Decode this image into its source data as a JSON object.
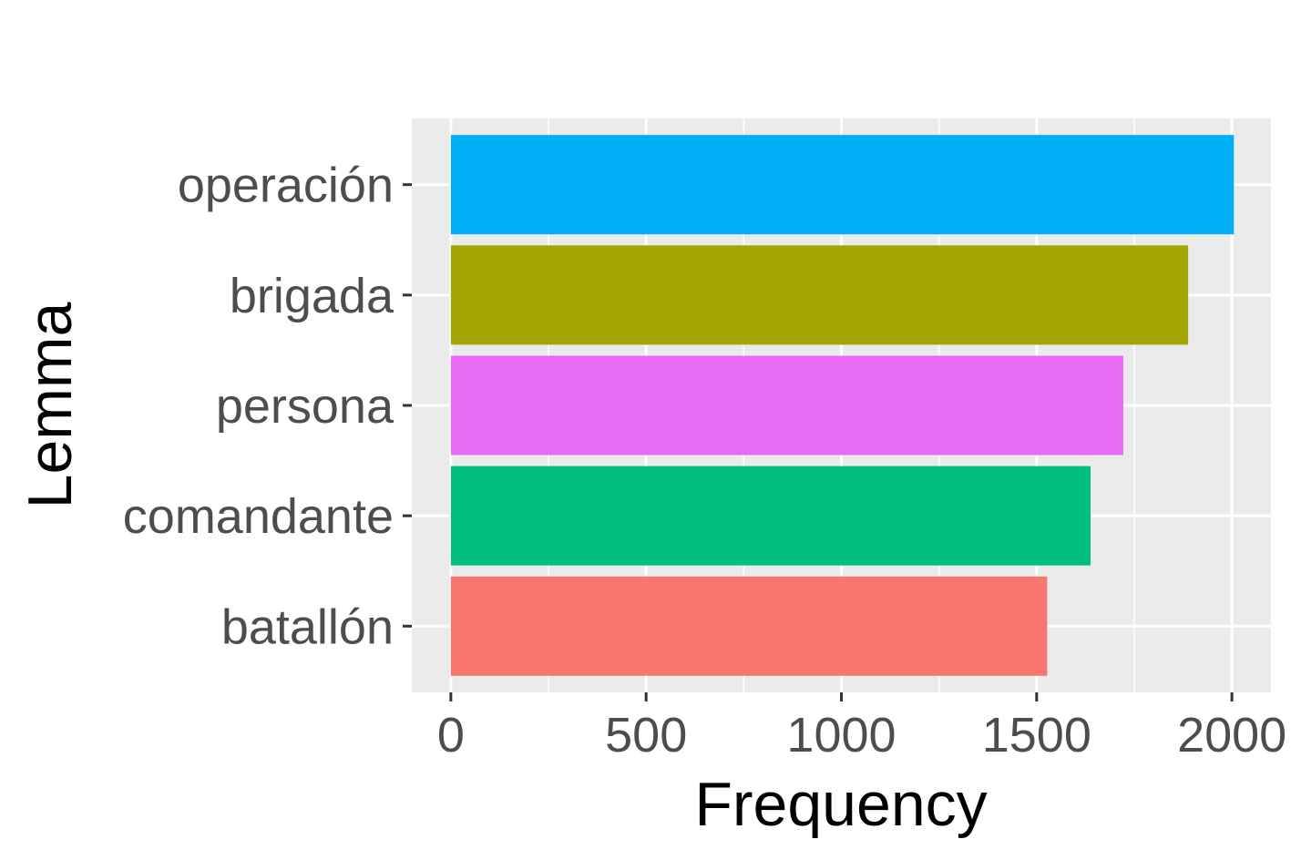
{
  "chart_data": {
    "type": "bar",
    "orientation": "horizontal",
    "title": "",
    "xlabel": "Frequency",
    "ylabel": "Lemma",
    "categories": [
      "operación",
      "brigada",
      "persona",
      "comandante",
      "batallón"
    ],
    "values": [
      2005,
      1888,
      1722,
      1638,
      1527
    ],
    "colors": [
      "#00b0f6",
      "#a3a500",
      "#e76bf3",
      "#00bf7d",
      "#f8766d"
    ],
    "xlim": [
      -100,
      2100
    ],
    "xticks": [
      0,
      500,
      1000,
      1500,
      2000
    ],
    "xtick_labels": [
      "0",
      "500",
      "1000",
      "1500",
      "2000"
    ],
    "grid": true,
    "legend": "none",
    "panel_background": "#ebebeb",
    "gridline_color": "#ffffff"
  }
}
